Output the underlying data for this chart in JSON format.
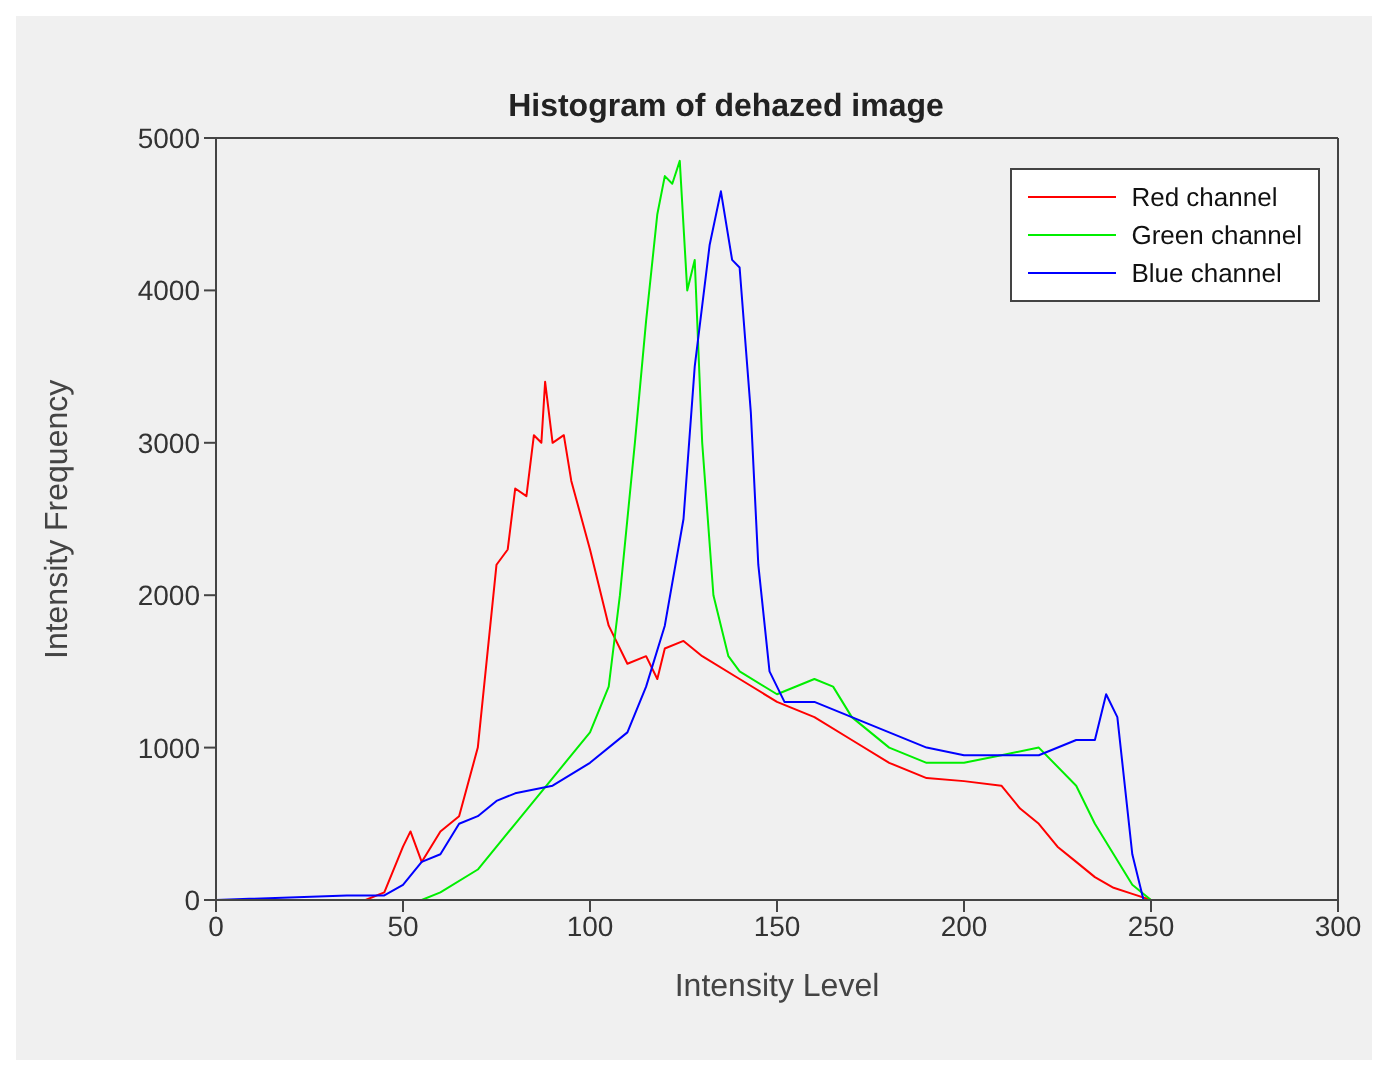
{
  "chart_data": {
    "type": "line",
    "title": "Histogram of dehazed image",
    "xlabel": "Intensity Level",
    "ylabel": "Intensity Frequency",
    "xlim": [
      0,
      300
    ],
    "xticks": [
      0,
      50,
      100,
      150,
      200,
      250,
      300
    ],
    "ylim": [
      0,
      5000
    ],
    "yticks": [
      0,
      1000,
      2000,
      3000,
      4000,
      5000
    ],
    "legend": "top right",
    "marker": "none",
    "line_style": "solid",
    "series": [
      {
        "name": "Red channel",
        "color": "#ff0000",
        "x": [
          0,
          40,
          45,
          50,
          52,
          55,
          60,
          65,
          70,
          75,
          78,
          80,
          83,
          85,
          87,
          88,
          90,
          93,
          95,
          100,
          105,
          110,
          115,
          118,
          120,
          125,
          130,
          140,
          150,
          160,
          170,
          180,
          190,
          200,
          210,
          215,
          220,
          225,
          230,
          235,
          240,
          245,
          250,
          255
        ],
        "values": [
          0,
          0,
          50,
          350,
          450,
          250,
          450,
          550,
          1000,
          2200,
          2300,
          2700,
          2650,
          3050,
          3000,
          3400,
          3000,
          3050,
          2750,
          2300,
          1800,
          1550,
          1600,
          1450,
          1650,
          1700,
          1600,
          1450,
          1300,
          1200,
          1050,
          900,
          800,
          780,
          750,
          600,
          500,
          350,
          250,
          150,
          80,
          40,
          0,
          0
        ]
      },
      {
        "name": "Green channel",
        "color": "#00ee00",
        "x": [
          0,
          55,
          60,
          70,
          80,
          90,
          100,
          105,
          108,
          112,
          115,
          118,
          120,
          122,
          124,
          126,
          128,
          130,
          133,
          137,
          140,
          150,
          160,
          165,
          170,
          180,
          190,
          200,
          210,
          220,
          230,
          235,
          240,
          245,
          250,
          255
        ],
        "values": [
          0,
          0,
          50,
          200,
          500,
          800,
          1100,
          1400,
          2000,
          3000,
          3800,
          4500,
          4750,
          4700,
          4850,
          4000,
          4200,
          3000,
          2000,
          1600,
          1500,
          1350,
          1450,
          1400,
          1200,
          1000,
          900,
          900,
          950,
          1000,
          750,
          500,
          300,
          100,
          0,
          0
        ]
      },
      {
        "name": "Blue channel",
        "color": "#0000ff",
        "x": [
          0,
          35,
          45,
          50,
          55,
          60,
          65,
          70,
          75,
          80,
          90,
          100,
          110,
          115,
          120,
          125,
          128,
          132,
          135,
          138,
          140,
          143,
          145,
          148,
          152,
          160,
          170,
          180,
          190,
          200,
          210,
          220,
          230,
          235,
          238,
          241,
          245,
          248,
          255
        ],
        "values": [
          0,
          30,
          30,
          100,
          250,
          300,
          500,
          550,
          650,
          700,
          750,
          900,
          1100,
          1400,
          1800,
          2500,
          3500,
          4300,
          4650,
          4200,
          4150,
          3200,
          2200,
          1500,
          1300,
          1300,
          1200,
          1100,
          1000,
          950,
          950,
          950,
          1050,
          1050,
          1350,
          1200,
          300,
          0,
          0
        ]
      }
    ]
  }
}
